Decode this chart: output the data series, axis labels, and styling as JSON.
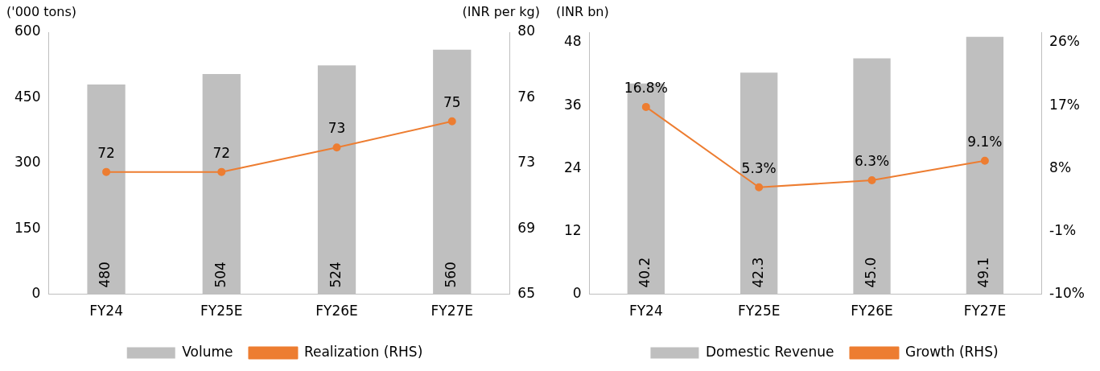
{
  "chart_data": [
    {
      "type": "bar",
      "categories": [
        "FY24",
        "FY25E",
        "FY26E",
        "FY27E"
      ],
      "ylabel": "('000 tons)",
      "y2label": "(INR per kg)",
      "ylim": [
        0,
        600
      ],
      "yticks": [
        0,
        150,
        300,
        450,
        600
      ],
      "y2lim": [
        65,
        80
      ],
      "y2ticks": [
        65,
        {
          "value": 68.75,
          "label": "69"
        },
        {
          "value": 72.5,
          "label": "73"
        },
        {
          "value": 76.25,
          "label": "76"
        },
        80
      ],
      "legend": "bottom",
      "grid": false,
      "series": [
        {
          "name": "Volume",
          "color": "#bfbfbf",
          "values": [
            480,
            504,
            524,
            560
          ],
          "value_labels": [
            "480",
            "504",
            "524",
            "560"
          ]
        },
        {
          "name": "Realization (RHS)",
          "type": "line",
          "axis": "y2",
          "color": "#ed7d31",
          "marker": "circle",
          "values": [
            72,
            72,
            73.4,
            74.9
          ],
          "value_labels": [
            "72",
            "72",
            "73",
            "75"
          ]
        }
      ]
    },
    {
      "type": "bar",
      "categories": [
        "FY24",
        "FY25E",
        "FY26E",
        "FY27E"
      ],
      "ylabel": "(INR bn)",
      "ylim": [
        0,
        50
      ],
      "yticks": [
        0,
        12,
        24,
        36,
        48
      ],
      "y2lim": [
        -10,
        27.5
      ],
      "y2ticks": [
        {
          "value": -10,
          "label": "-10%"
        },
        {
          "value": -1,
          "label": "-1%"
        },
        {
          "value": 8,
          "label": "8%"
        },
        {
          "value": 17,
          "label": "17%"
        },
        {
          "value": 26,
          "label": "26%"
        }
      ],
      "legend": "bottom",
      "grid": false,
      "series": [
        {
          "name": "Domestic Revenue",
          "color": "#bfbfbf",
          "values": [
            40.2,
            42.3,
            45.0,
            49.1
          ],
          "value_labels": [
            "40.2",
            "42.3",
            "45.0",
            "49.1"
          ]
        },
        {
          "name": "Growth (RHS)",
          "type": "line",
          "axis": "y2",
          "color": "#ed7d31",
          "marker": "circle",
          "values": [
            16.8,
            5.3,
            6.3,
            9.1
          ],
          "value_labels": [
            "16.8%",
            "5.3%",
            "6.3%",
            "9.1%"
          ]
        }
      ]
    }
  ]
}
